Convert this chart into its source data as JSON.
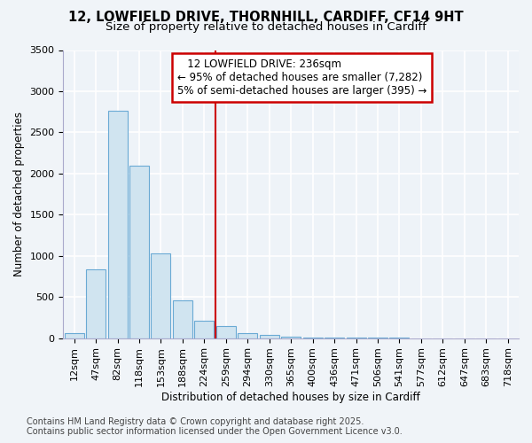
{
  "title_line1": "12, LOWFIELD DRIVE, THORNHILL, CARDIFF, CF14 9HT",
  "title_line2": "Size of property relative to detached houses in Cardiff",
  "xlabel": "Distribution of detached houses by size in Cardiff",
  "ylabel": "Number of detached properties",
  "categories": [
    "12sqm",
    "47sqm",
    "82sqm",
    "118sqm",
    "153sqm",
    "188sqm",
    "224sqm",
    "259sqm",
    "294sqm",
    "330sqm",
    "365sqm",
    "400sqm",
    "436sqm",
    "471sqm",
    "506sqm",
    "541sqm",
    "577sqm",
    "612sqm",
    "647sqm",
    "683sqm",
    "718sqm"
  ],
  "values": [
    60,
    840,
    2760,
    2100,
    1030,
    460,
    210,
    150,
    60,
    35,
    20,
    10,
    5,
    4,
    3,
    2,
    1,
    1,
    1,
    1,
    1
  ],
  "bar_color": "#d0e4f0",
  "bar_edge_color": "#6aaad4",
  "vline_x": 6.5,
  "vline_color": "#cc0000",
  "annotation_title": "12 LOWFIELD DRIVE: 236sqm",
  "annotation_line1": "← 95% of detached houses are smaller (7,282)",
  "annotation_line2": "5% of semi-detached houses are larger (395) →",
  "annotation_box_color": "#cc0000",
  "ylim": [
    0,
    3500
  ],
  "yticks": [
    0,
    500,
    1000,
    1500,
    2000,
    2500,
    3000,
    3500
  ],
  "footer_line1": "Contains HM Land Registry data © Crown copyright and database right 2025.",
  "footer_line2": "Contains public sector information licensed under the Open Government Licence v3.0.",
  "bg_color": "#f0f4f8",
  "plot_bg_color": "#eef3f8",
  "grid_color": "#ffffff",
  "title_fontsize": 10.5,
  "subtitle_fontsize": 9.5,
  "axis_label_fontsize": 8.5,
  "tick_fontsize": 8,
  "footer_fontsize": 7
}
